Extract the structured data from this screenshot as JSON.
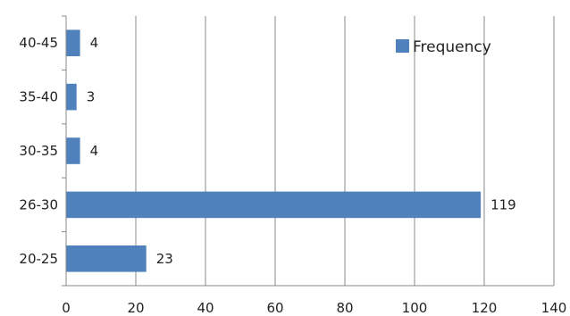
{
  "chart_data": {
    "type": "bar",
    "orientation": "horizontal",
    "categories": [
      "20-25",
      "26-30",
      "30-35",
      "35-40",
      "40-45"
    ],
    "series": [
      {
        "name": "Frequency",
        "values": [
          23,
          119,
          4,
          3,
          4
        ],
        "color": "#4f81bd"
      }
    ],
    "xlim": [
      0,
      140
    ],
    "xticks": [
      0,
      20,
      40,
      60,
      80,
      100,
      120,
      140
    ],
    "grid": true,
    "legend": "top-right",
    "data_labels": true
  }
}
